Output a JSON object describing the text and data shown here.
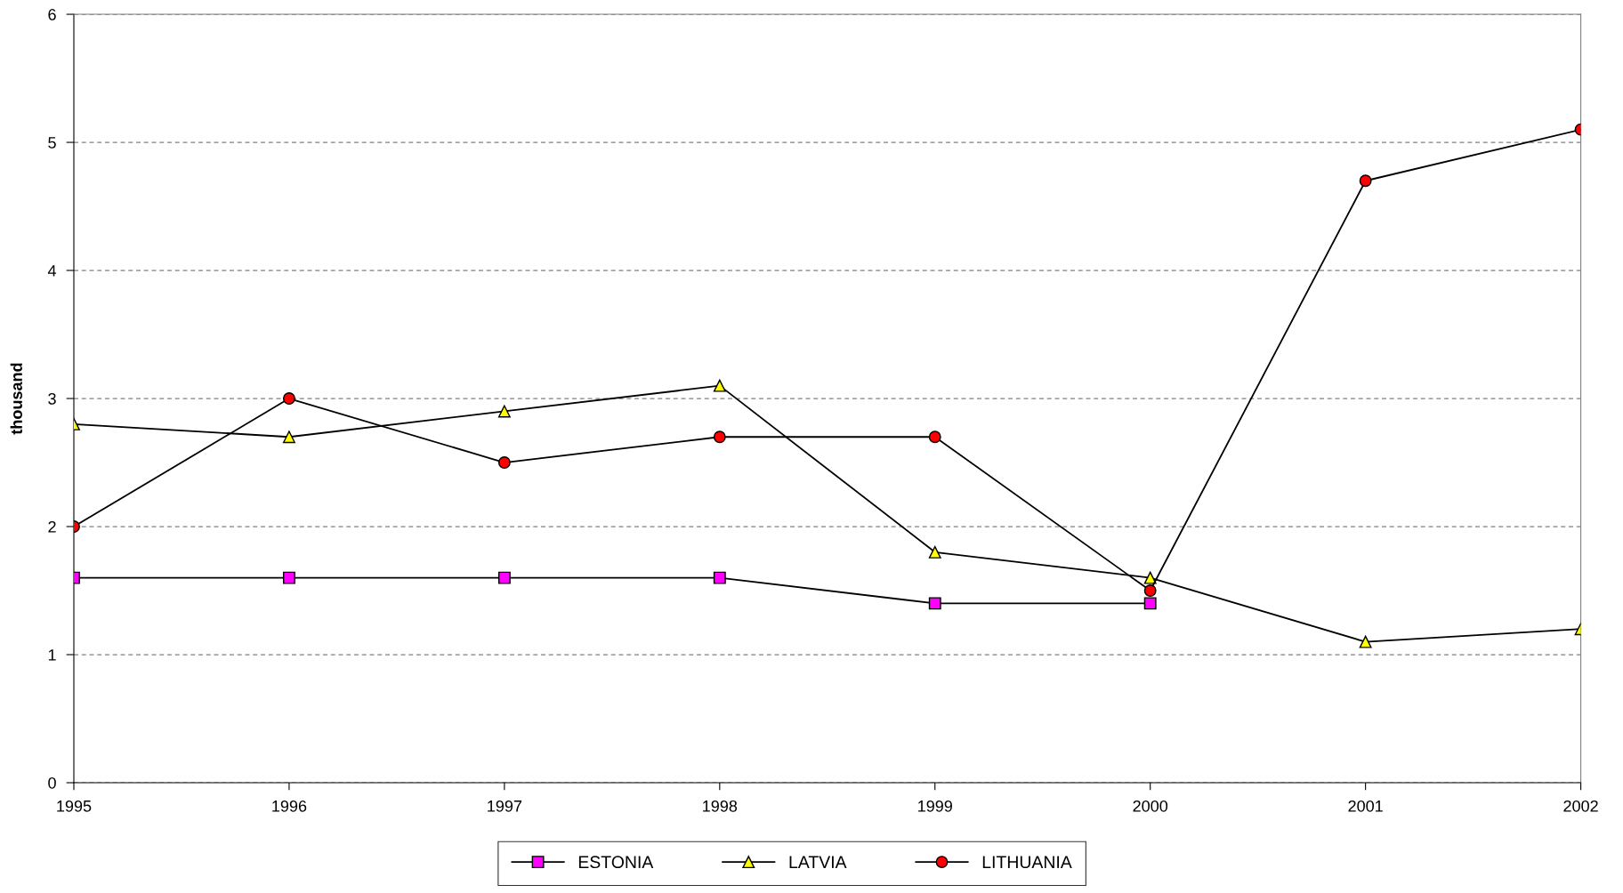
{
  "chart_data": {
    "type": "line",
    "ylabel": "thousand",
    "x": [
      1995,
      1996,
      1997,
      1998,
      1999,
      2000,
      2001,
      2002
    ],
    "xlim": [
      1995,
      2002
    ],
    "xticks": [
      1995,
      1996,
      1997,
      1998,
      1999,
      2000,
      2001,
      2002
    ],
    "ylim": [
      0,
      6
    ],
    "yticks": [
      0,
      1,
      2,
      3,
      4,
      5,
      6
    ],
    "grid": "y",
    "legend": "bottom",
    "line_style": "solid",
    "series": [
      {
        "name": "ESTONIA",
        "color": "#ff00ff",
        "marker": "square",
        "values": [
          1.6,
          1.6,
          1.6,
          1.6,
          1.4,
          1.4,
          null,
          null
        ]
      },
      {
        "name": "LATVIA",
        "color": "#ffff00",
        "marker": "triangle",
        "values": [
          2.8,
          2.7,
          2.9,
          3.1,
          1.8,
          1.6,
          1.1,
          1.2
        ]
      },
      {
        "name": "LITHUANIA",
        "color": "#ff0000",
        "marker": "circle",
        "values": [
          2.0,
          3.0,
          2.5,
          2.7,
          2.7,
          1.5,
          4.7,
          5.1
        ]
      }
    ]
  }
}
